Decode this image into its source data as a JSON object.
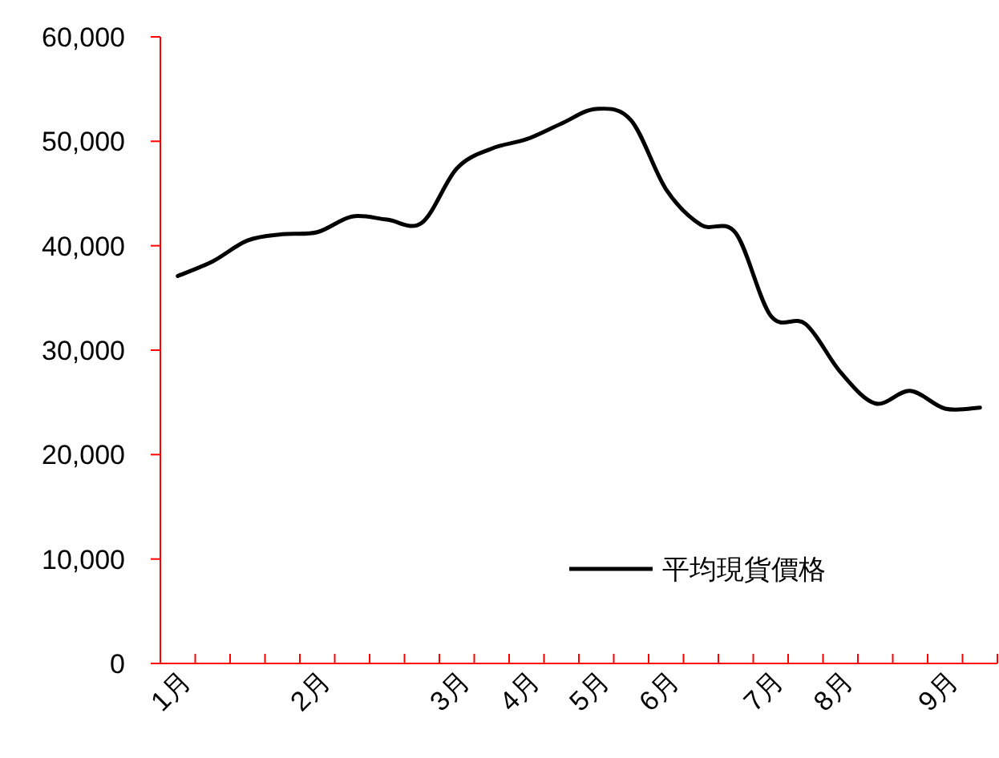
{
  "chart_data": {
    "type": "line",
    "categories": [
      "1月",
      null,
      null,
      null,
      "2月",
      null,
      null,
      null,
      "3月",
      null,
      "4月",
      null,
      "5月",
      null,
      "6月",
      null,
      null,
      "7月",
      null,
      "8月",
      null,
      null,
      "9月",
      null
    ],
    "series": [
      {
        "name": "平均現貨價格",
        "color": "#000000",
        "values": [
          37100,
          38500,
          40500,
          41100,
          41300,
          42800,
          42500,
          42200,
          47400,
          49300,
          50200,
          51700,
          53100,
          52000,
          45400,
          42000,
          41200,
          33300,
          32500,
          27900,
          24900,
          26100,
          24400,
          24500
        ]
      }
    ],
    "ylim": [
      0,
      60000
    ],
    "yticks": [
      0,
      {
        "value": 10000,
        "label": "10,000"
      },
      {
        "value": 20000,
        "label": "20,000"
      },
      {
        "value": 30000,
        "label": "30,000"
      },
      {
        "value": 40000,
        "label": "40,000"
      },
      {
        "value": 50000,
        "label": "50,000"
      },
      {
        "value": 60000,
        "label": "60,000"
      }
    ],
    "grid": false,
    "legend": "bottom right",
    "marker": "none",
    "line_style": "solid"
  }
}
